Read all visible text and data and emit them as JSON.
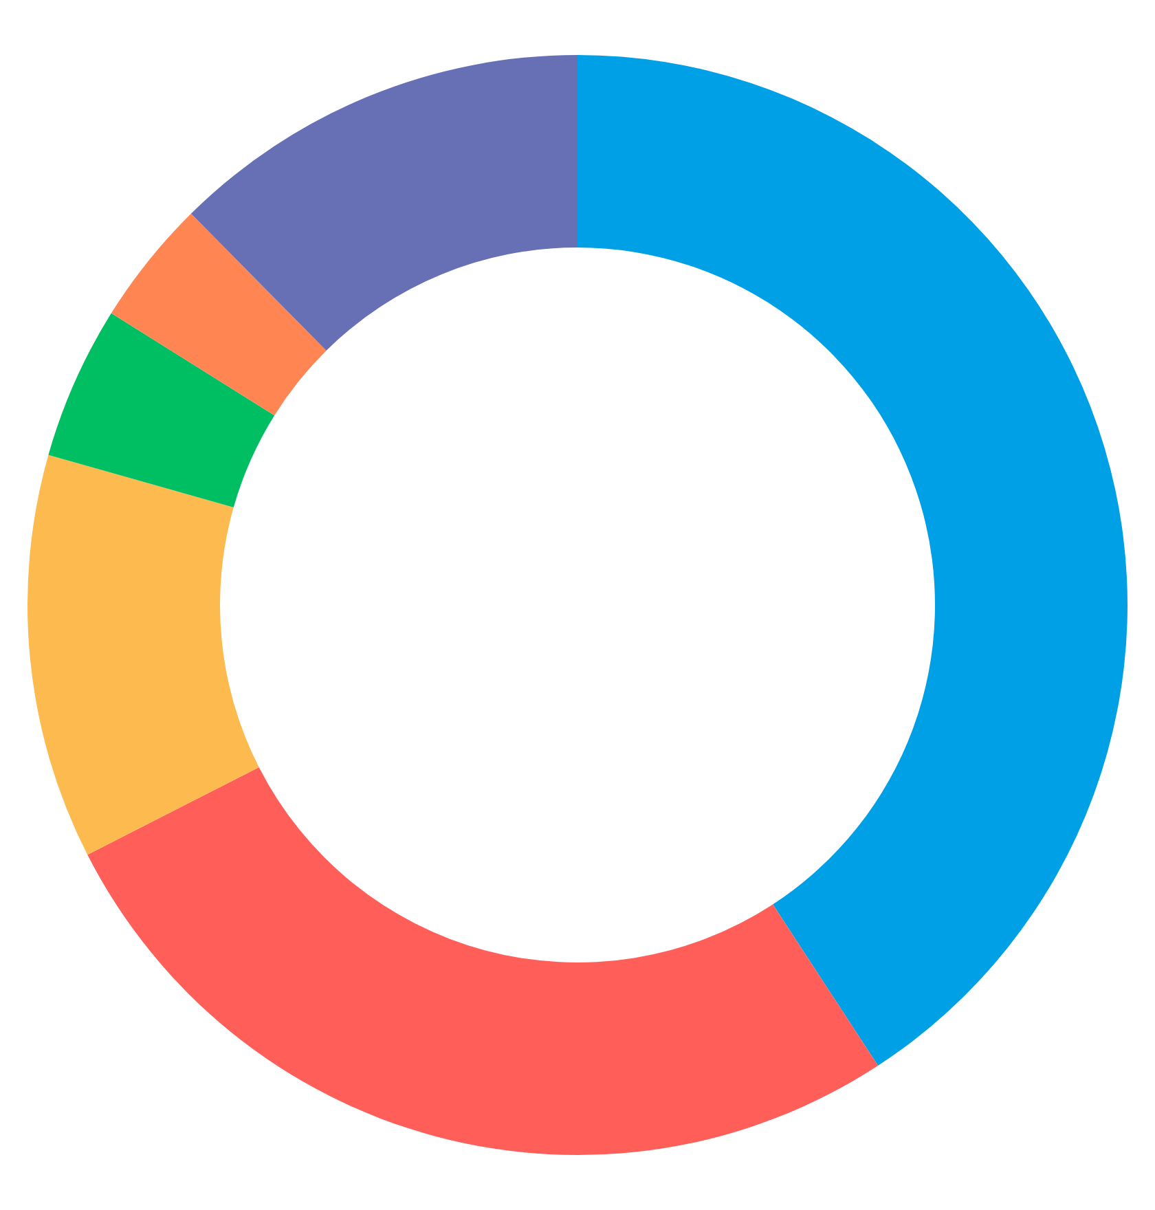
{
  "chart_data": {
    "type": "donut",
    "categories": [
      null,
      null,
      null,
      null,
      null,
      null
    ],
    "values": [
      40.8,
      26.7,
      11.9,
      4.5,
      3.7,
      12.4
    ],
    "colors": [
      "#00a0e6",
      "#ff5f58",
      "#fdbb4f",
      "#00bf63",
      "#ff8552",
      "#6770b5"
    ]
  }
}
